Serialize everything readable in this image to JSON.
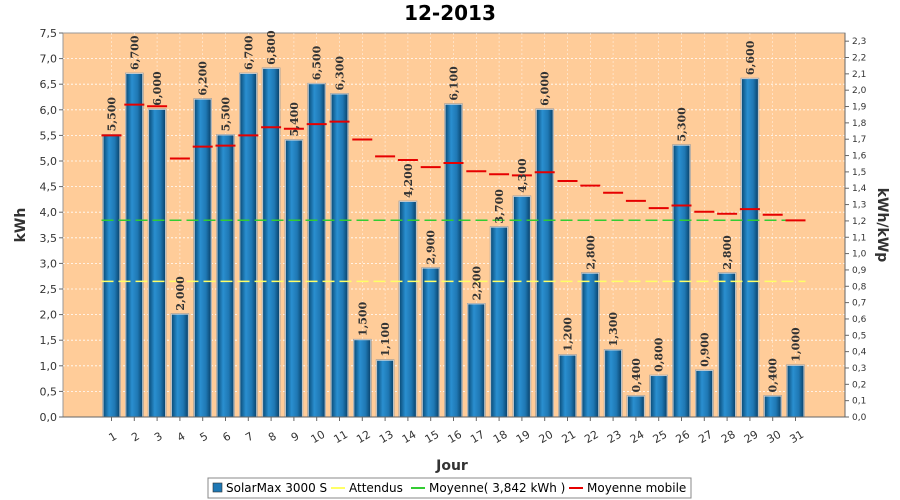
{
  "chart_data": {
    "type": "bar",
    "title": "12-2013",
    "xlabel": "Jour",
    "ylabel": "kWh",
    "y2label": "kWh/kWp",
    "ylim": [
      0,
      7.5
    ],
    "y2lim": [
      0,
      2.35
    ],
    "yticks": [
      "0,0",
      "0,5",
      "1,0",
      "1,5",
      "2,0",
      "2,5",
      "3,0",
      "3,5",
      "4,0",
      "4,5",
      "5,0",
      "5,5",
      "6,0",
      "6,5",
      "7,0",
      "7,5"
    ],
    "y2ticks": [
      "0,0",
      "0,1",
      "0,2",
      "0,3",
      "0,4",
      "0,5",
      "0,6",
      "0,7",
      "0,8",
      "0,9",
      "1,0",
      "1,1",
      "1,2",
      "1,3",
      "1,4",
      "1,5",
      "1,6",
      "1,7",
      "1,8",
      "1,9",
      "2,0",
      "2,1",
      "2,2",
      "2,3"
    ],
    "categories": [
      "1",
      "2",
      "3",
      "4",
      "5",
      "6",
      "7",
      "8",
      "9",
      "10",
      "11",
      "12",
      "13",
      "14",
      "15",
      "16",
      "17",
      "18",
      "19",
      "20",
      "21",
      "22",
      "23",
      "24",
      "25",
      "26",
      "27",
      "28",
      "29",
      "30",
      "31"
    ],
    "series": [
      {
        "name": "SolarMax 3000 S",
        "values": [
          5.5,
          6.7,
          6.0,
          2.0,
          6.2,
          5.5,
          6.7,
          6.8,
          5.4,
          6.5,
          6.3,
          1.5,
          1.1,
          4.2,
          2.9,
          6.1,
          2.2,
          3.7,
          4.3,
          6.0,
          1.2,
          2.8,
          1.3,
          0.4,
          0.8,
          5.3,
          0.9,
          2.8,
          6.6,
          0.4,
          1.0
        ],
        "labels": [
          "5,500",
          "6,700",
          "6,000",
          "2,000",
          "6,200",
          "5,500",
          "6,700",
          "6,800",
          "5,400",
          "6,500",
          "6,300",
          "1,500",
          "1,100",
          "4,200",
          "2,900",
          "6,100",
          "2,200",
          "3,700",
          "4,300",
          "6,000",
          "1,200",
          "2,800",
          "1,300",
          "0,400",
          "0,800",
          "5,300",
          "0,900",
          "2,800",
          "6,600",
          "0,400",
          "1,000"
        ]
      },
      {
        "name": "Attendus",
        "value": 2.65
      },
      {
        "name": "Moyenne( 3,842 kWh )",
        "value": 3.842
      },
      {
        "name": "Moyenne mobile",
        "values": [
          5.5,
          6.1,
          6.07,
          5.05,
          5.28,
          5.3,
          5.5,
          5.66,
          5.63,
          5.72,
          5.77,
          5.42,
          5.09,
          5.02,
          4.88,
          4.96,
          4.8,
          4.74,
          4.72,
          4.78,
          4.61,
          4.52,
          4.38,
          4.22,
          4.08,
          4.13,
          4.01,
          3.97,
          4.06,
          3.95,
          3.84
        ]
      }
    ],
    "colors": {
      "plot_bg": "#ffcc99",
      "bar": "#1f78b4",
      "attendus": "#ffff66",
      "moyenne": "#33cc33",
      "mobile": "#e60000"
    },
    "legend_position": "bottom-center",
    "grid": true
  }
}
